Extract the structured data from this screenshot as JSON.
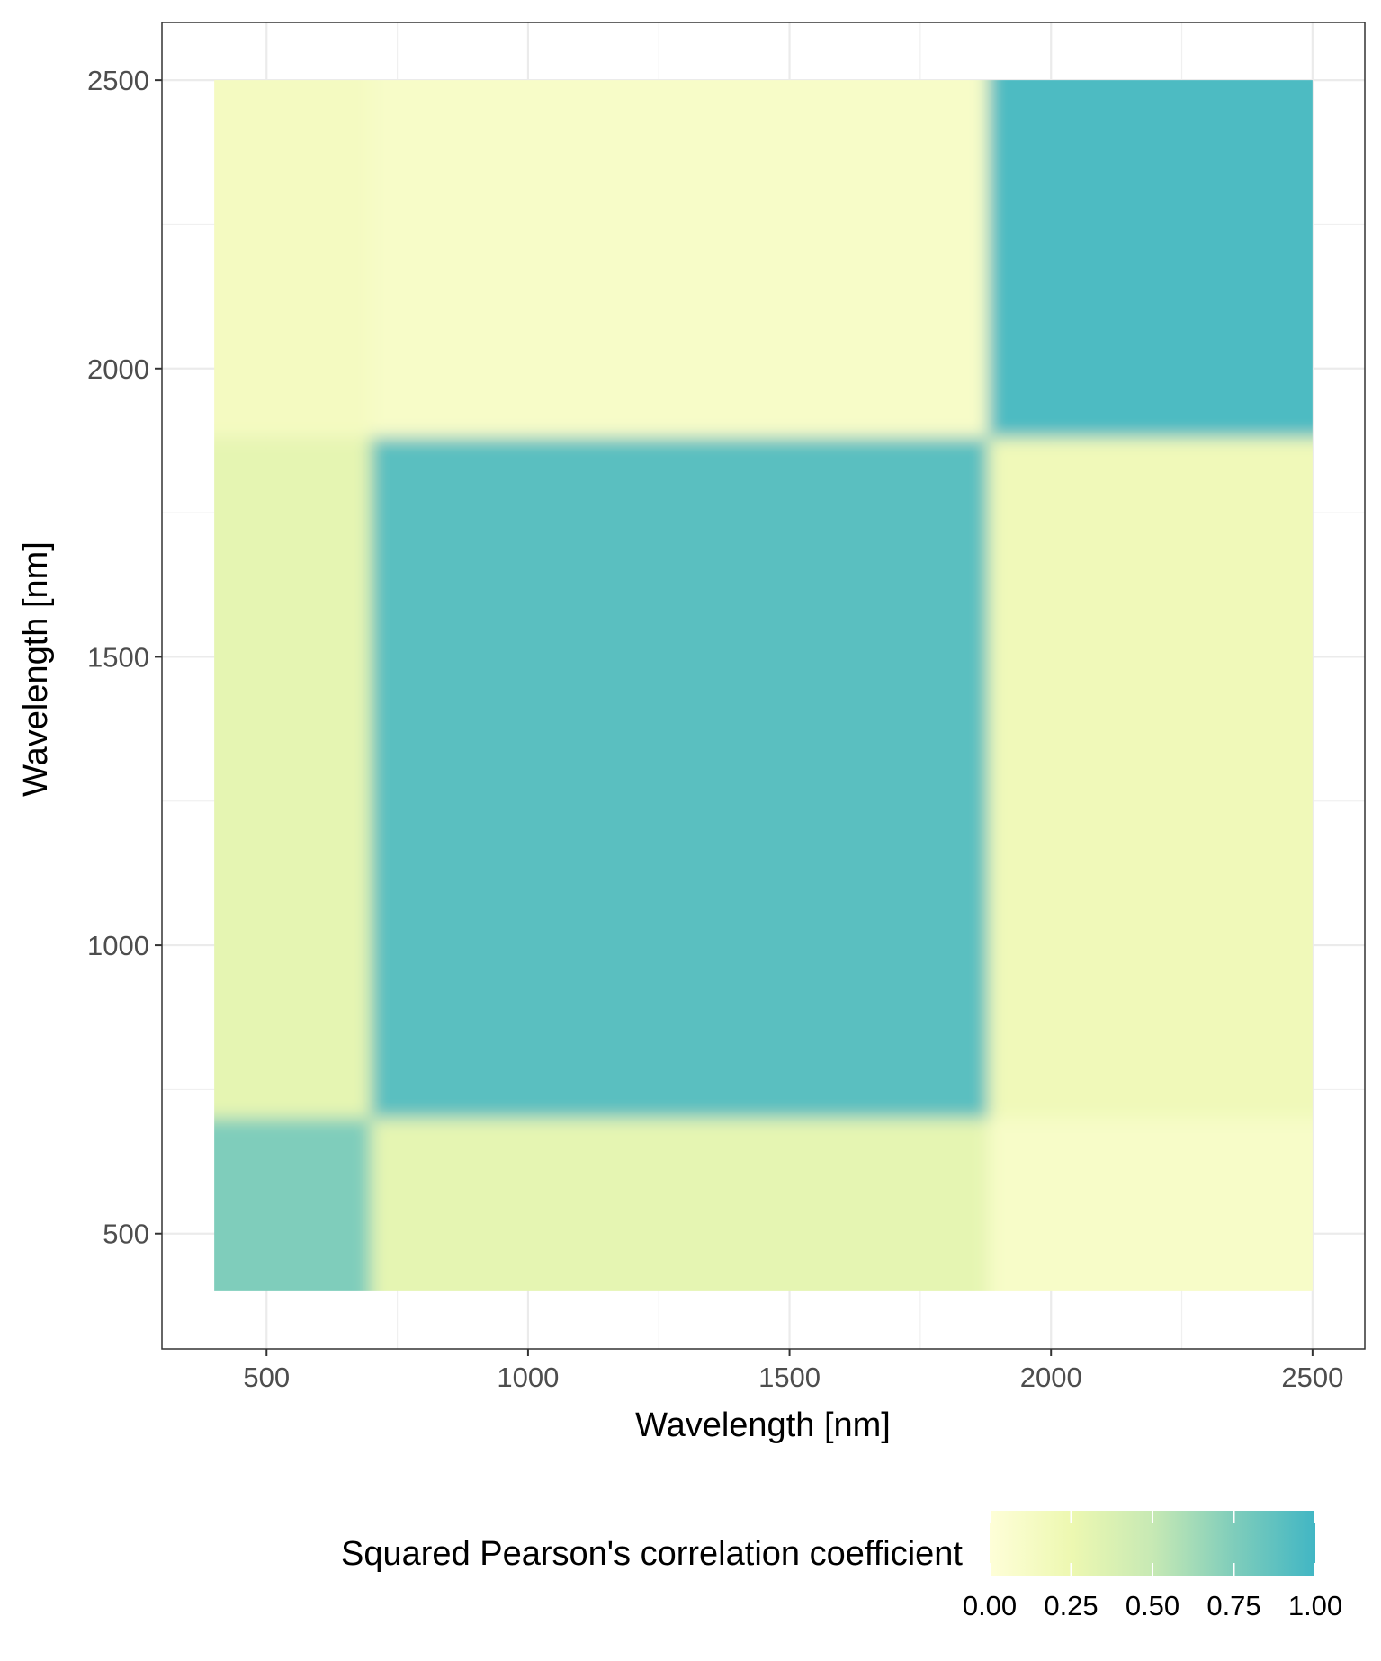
{
  "chart_data": {
    "type": "heatmap",
    "title": "",
    "xlabel": "Wavelength [nm]",
    "ylabel": "Wavelength [nm]",
    "xlim": [
      300,
      2600
    ],
    "ylim": [
      300,
      2600
    ],
    "data_range": [
      400,
      2500
    ],
    "x_ticks": [
      500,
      1000,
      1500,
      2000,
      2500
    ],
    "y_ticks": [
      500,
      1000,
      1500,
      2000,
      2500
    ],
    "x_tick_labels": [
      "500",
      "1000",
      "1500",
      "2000",
      "2500"
    ],
    "y_tick_labels": [
      "500",
      "1000",
      "1500",
      "2000",
      "2500"
    ],
    "grid": true,
    "colorbar": {
      "title": "Squared Pearson's correlation coefficient",
      "ticks": [
        0,
        0.25,
        0.5,
        0.75,
        1
      ],
      "tick_labels": [
        "0.00",
        "0.25",
        "0.50",
        "0.75",
        "1.00"
      ],
      "colors": [
        "#fefed8",
        "#edf8b1",
        "#c7e9b4",
        "#7fcdbb",
        "#41b6c4"
      ],
      "position": "bottom"
    },
    "blocks": [
      {
        "x": [
          400,
          700
        ],
        "y": [
          400,
          700
        ],
        "value": 0.75
      },
      {
        "x": [
          400,
          700
        ],
        "y": [
          700,
          1880
        ],
        "value": 0.3
      },
      {
        "x": [
          400,
          700
        ],
        "y": [
          1880,
          2500
        ],
        "value": 0.15
      },
      {
        "x": [
          700,
          1880
        ],
        "y": [
          400,
          700
        ],
        "value": 0.3
      },
      {
        "x": [
          700,
          1880
        ],
        "y": [
          700,
          1880
        ],
        "value": 0.9
      },
      {
        "x": [
          700,
          1880
        ],
        "y": [
          1880,
          2500
        ],
        "value": 0.1
      },
      {
        "x": [
          1880,
          2500
        ],
        "y": [
          400,
          700
        ],
        "value": 0.1
      },
      {
        "x": [
          1880,
          2500
        ],
        "y": [
          700,
          1880
        ],
        "value": 0.2
      },
      {
        "x": [
          1880,
          2500
        ],
        "y": [
          1880,
          2500
        ],
        "value": 0.95
      }
    ]
  }
}
